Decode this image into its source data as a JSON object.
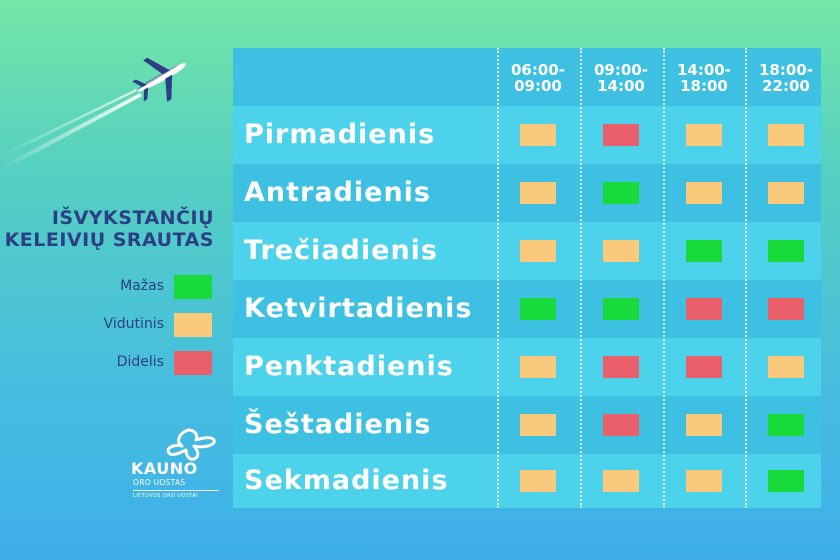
{
  "colors": {
    "low": "#18da3a",
    "medium": "#fbc97b",
    "high": "#e9606a",
    "label_text": "#2c3f86"
  },
  "legend": {
    "title_line1": "IŠVYKSTANČIŲ",
    "title_line2": "KELEIVIŲ SRAUTAS",
    "items": [
      {
        "label": "Mažas",
        "level": "low"
      },
      {
        "label": "Vidutinis",
        "level": "medium"
      },
      {
        "label": "Didelis",
        "level": "high"
      }
    ]
  },
  "logo": {
    "name": "KAUNO",
    "sub": "ORO UOSTAS",
    "tagline": "LIETUVOS ORO UOSTAI"
  },
  "schedule": {
    "columns": [
      {
        "line1": "06:00-",
        "line2": "09:00"
      },
      {
        "line1": "09:00-",
        "line2": "14:00"
      },
      {
        "line1": "14:00-",
        "line2": "18:00"
      },
      {
        "line1": "18:00-",
        "line2": "22:00"
      }
    ],
    "rows": [
      {
        "day": "Pirmadienis",
        "levels": [
          "medium",
          "high",
          "medium",
          "medium"
        ]
      },
      {
        "day": "Antradienis",
        "levels": [
          "medium",
          "low",
          "medium",
          "medium"
        ]
      },
      {
        "day": "Trečiadienis",
        "levels": [
          "medium",
          "medium",
          "low",
          "low"
        ]
      },
      {
        "day": "Ketvirtadienis",
        "levels": [
          "low",
          "low",
          "high",
          "high"
        ]
      },
      {
        "day": "Penktadienis",
        "levels": [
          "medium",
          "high",
          "high",
          "medium"
        ]
      },
      {
        "day": "Šeštadienis",
        "levels": [
          "medium",
          "high",
          "medium",
          "low"
        ]
      },
      {
        "day": "Sekmadienis",
        "levels": [
          "medium",
          "medium",
          "medium",
          "low"
        ]
      }
    ]
  }
}
